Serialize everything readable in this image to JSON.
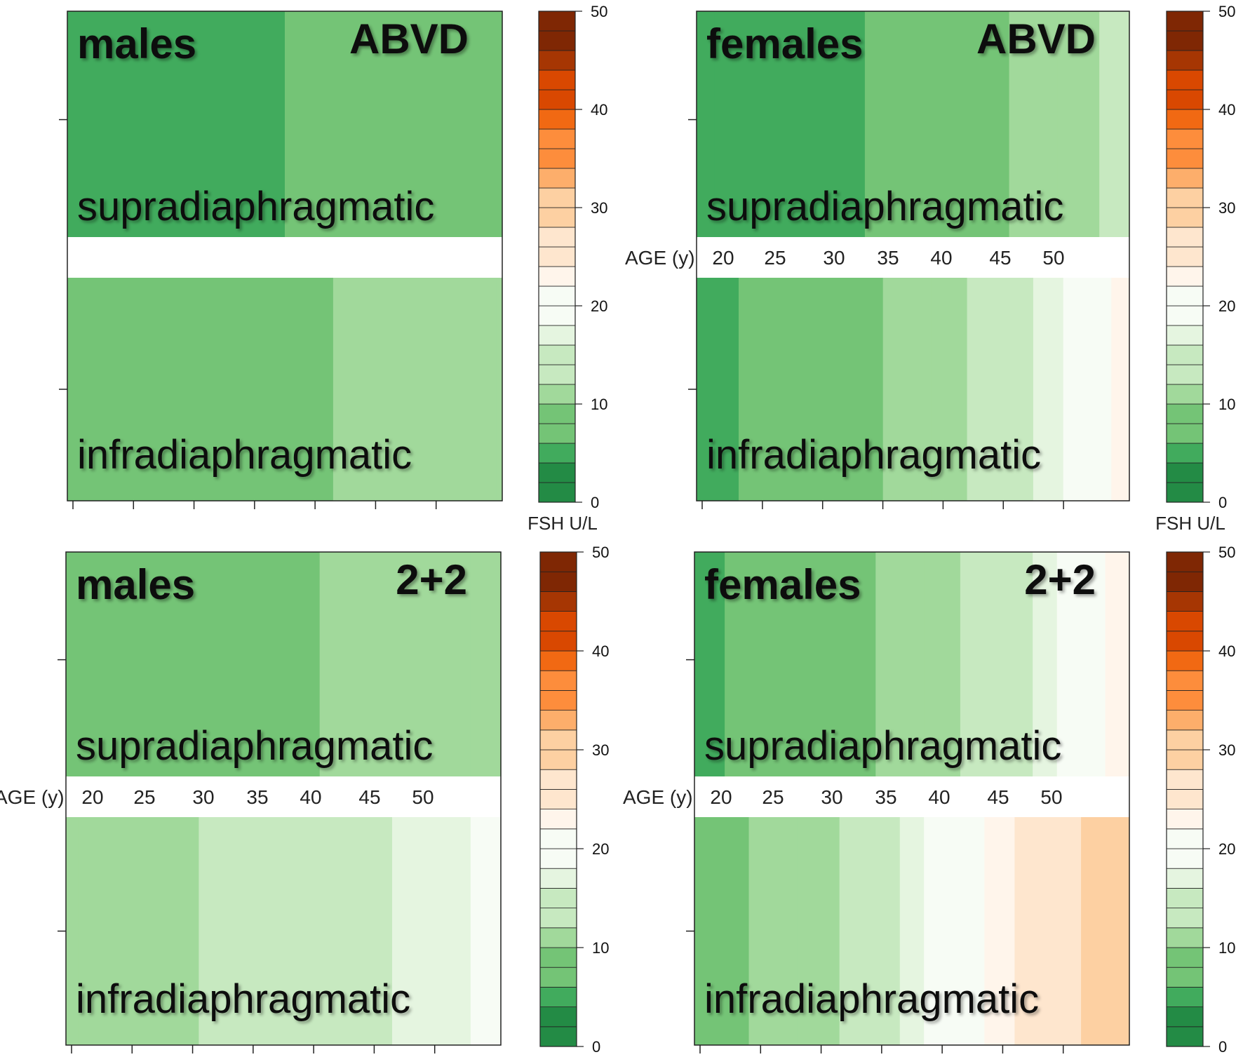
{
  "chart_data": [
    {
      "type": "heatmap",
      "title": "males",
      "regimen": "ABVD",
      "rows": [
        {
          "label": "supradiaphragmatic",
          "bands": [
            {
              "age_from": 18,
              "age_to": 36,
              "fsh": 6
            },
            {
              "age_from": 36,
              "age_to": 54,
              "fsh": 7
            }
          ]
        },
        {
          "label": "infradiaphragmatic",
          "bands": [
            {
              "age_from": 18,
              "age_to": 25,
              "fsh": 7
            },
            {
              "age_from": 25,
              "age_to": 40,
              "fsh": 9
            },
            {
              "age_from": 40,
              "age_to": 53.5,
              "fsh": 10
            },
            {
              "age_from": 53.5,
              "age_to": 54,
              "fsh": 11
            }
          ]
        }
      ]
    },
    {
      "type": "heatmap",
      "title": "females",
      "regimen": "ABVD",
      "age_axis": {
        "label": "AGE (y)",
        "ticks": [
          "20",
          "25",
          "30",
          "35",
          "40",
          "45",
          "50"
        ]
      },
      "rows": [
        {
          "label": "supradiaphragmatic",
          "bands": [
            {
              "age_from": 18,
              "age_to": 19.5,
              "fsh": 4
            },
            {
              "age_from": 19.5,
              "age_to": 32,
              "fsh": 6
            },
            {
              "age_from": 32,
              "age_to": 39,
              "fsh": 7
            },
            {
              "age_from": 39,
              "age_to": 44,
              "fsh": 9
            },
            {
              "age_from": 44,
              "age_to": 48,
              "fsh": 10
            },
            {
              "age_from": 48,
              "age_to": 51.5,
              "fsh": 11
            },
            {
              "age_from": 51.5,
              "age_to": 53.5,
              "fsh": 13
            },
            {
              "age_from": 53.5,
              "age_to": 54,
              "fsh": 15
            }
          ]
        },
        {
          "label": "infradiaphragmatic",
          "bands": [
            {
              "age_from": 18,
              "age_to": 21.5,
              "fsh": 6
            },
            {
              "age_from": 21.5,
              "age_to": 28.5,
              "fsh": 7
            },
            {
              "age_from": 28.5,
              "age_to": 33.5,
              "fsh": 9
            },
            {
              "age_from": 33.5,
              "age_to": 37.5,
              "fsh": 10
            },
            {
              "age_from": 37.5,
              "age_to": 40.5,
              "fsh": 11
            },
            {
              "age_from": 40.5,
              "age_to": 43.5,
              "fsh": 13
            },
            {
              "age_from": 43.5,
              "age_to": 46,
              "fsh": 15
            },
            {
              "age_from": 46,
              "age_to": 48.5,
              "fsh": 17
            },
            {
              "age_from": 48.5,
              "age_to": 50,
              "fsh": 19
            },
            {
              "age_from": 50,
              "age_to": 52.5,
              "fsh": 21
            },
            {
              "age_from": 52.5,
              "age_to": 54,
              "fsh": 23
            }
          ]
        }
      ]
    },
    {
      "type": "heatmap",
      "title": "males",
      "regimen": "2+2",
      "age_axis": {
        "label": "AGE (y)",
        "ticks": [
          "20",
          "25",
          "30",
          "35",
          "40",
          "45",
          "50"
        ]
      },
      "rows": [
        {
          "label": "supradiaphragmatic",
          "bands": [
            {
              "age_from": 18,
              "age_to": 23,
              "fsh": 7
            },
            {
              "age_from": 23,
              "age_to": 39,
              "fsh": 9
            },
            {
              "age_from": 39,
              "age_to": 51.5,
              "fsh": 10
            },
            {
              "age_from": 51.5,
              "age_to": 54,
              "fsh": 11
            }
          ]
        },
        {
          "label": "infradiaphragmatic",
          "bands": [
            {
              "age_from": 18,
              "age_to": 19,
              "fsh": 10
            },
            {
              "age_from": 19,
              "age_to": 29,
              "fsh": 11
            },
            {
              "age_from": 29,
              "age_to": 37.5,
              "fsh": 13
            },
            {
              "age_from": 37.5,
              "age_to": 45,
              "fsh": 15
            },
            {
              "age_from": 45,
              "age_to": 51.5,
              "fsh": 17
            },
            {
              "age_from": 51.5,
              "age_to": 54,
              "fsh": 19
            }
          ]
        }
      ]
    },
    {
      "type": "heatmap",
      "title": "females",
      "regimen": "2+2",
      "age_axis": {
        "label": "AGE (y)",
        "ticks": [
          "20",
          "25",
          "30",
          "35",
          "40",
          "45",
          "50"
        ]
      },
      "rows": [
        {
          "label": "supradiaphragmatic",
          "bands": [
            {
              "age_from": 18,
              "age_to": 20.5,
              "fsh": 6
            },
            {
              "age_from": 20.5,
              "age_to": 27.5,
              "fsh": 7
            },
            {
              "age_from": 27.5,
              "age_to": 33,
              "fsh": 9
            },
            {
              "age_from": 33,
              "age_to": 37,
              "fsh": 10
            },
            {
              "age_from": 37,
              "age_to": 40,
              "fsh": 11
            },
            {
              "age_from": 40,
              "age_to": 43,
              "fsh": 13
            },
            {
              "age_from": 43,
              "age_to": 46,
              "fsh": 15
            },
            {
              "age_from": 46,
              "age_to": 48,
              "fsh": 17
            },
            {
              "age_from": 48,
              "age_to": 50,
              "fsh": 19
            },
            {
              "age_from": 50,
              "age_to": 52,
              "fsh": 21
            },
            {
              "age_from": 52,
              "age_to": 54,
              "fsh": 23
            }
          ]
        },
        {
          "label": "infradiaphragmatic",
          "bands": [
            {
              "age_from": 18,
              "age_to": 22.5,
              "fsh": 9
            },
            {
              "age_from": 22.5,
              "age_to": 26.5,
              "fsh": 10
            },
            {
              "age_from": 26.5,
              "age_to": 30,
              "fsh": 11
            },
            {
              "age_from": 30,
              "age_to": 32.5,
              "fsh": 13
            },
            {
              "age_from": 32.5,
              "age_to": 35,
              "fsh": 15
            },
            {
              "age_from": 35,
              "age_to": 37,
              "fsh": 17
            },
            {
              "age_from": 37,
              "age_to": 39,
              "fsh": 19
            },
            {
              "age_from": 39,
              "age_to": 42,
              "fsh": 21
            },
            {
              "age_from": 42,
              "age_to": 44.5,
              "fsh": 23
            },
            {
              "age_from": 44.5,
              "age_to": 47,
              "fsh": 25
            },
            {
              "age_from": 47,
              "age_to": 50,
              "fsh": 27
            },
            {
              "age_from": 50,
              "age_to": 52.5,
              "fsh": 29
            },
            {
              "age_from": 52.5,
              "age_to": 54,
              "fsh": 31
            }
          ]
        }
      ]
    }
  ],
  "age_range": [
    18,
    54
  ],
  "colorbar": {
    "label": "FSH U/L",
    "ticks": [
      "0",
      "10",
      "20",
      "30",
      "40",
      "50"
    ],
    "min": 0,
    "max": 50,
    "steps": 25,
    "colors": [
      "#238b45",
      "#41ab5d",
      "#74c476",
      "#a1d99b",
      "#c7e9c0",
      "#e5f5e0",
      "#f7fcf5",
      "#fff5eb",
      "#fee6ce",
      "#fdd0a2",
      "#fdae6b",
      "#fd8d3c",
      "#f16913",
      "#d94801",
      "#a63603",
      "#7f2704"
    ]
  }
}
